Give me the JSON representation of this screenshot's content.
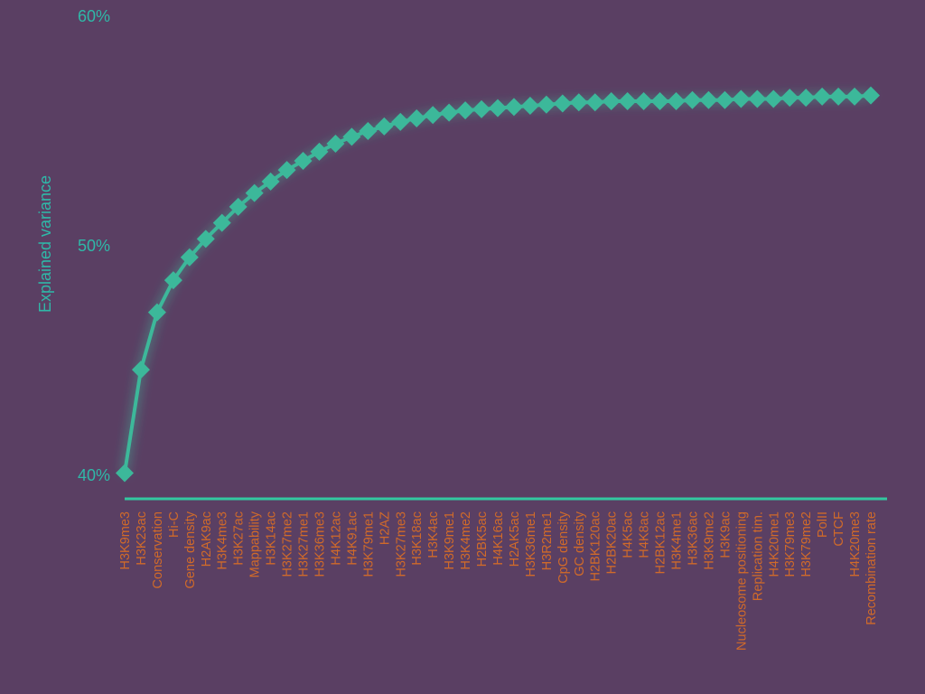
{
  "chart_data": {
    "type": "line",
    "title": "",
    "xlabel": "",
    "ylabel": "Explained variance",
    "ylim": [
      40,
      60
    ],
    "yticks": [
      "40%",
      "50%",
      "60%"
    ],
    "grid": false,
    "legend": "none",
    "categories": [
      "H3K9me3",
      "H3K23ac",
      "Conservation",
      "Hi-C",
      "Gene density",
      "H2AK9ac",
      "H3K4me3",
      "H3K27ac",
      "Mappability",
      "H3K14ac",
      "H3K27me2",
      "H3K27me1",
      "H3K36me3",
      "H4K12ac",
      "H4K91ac",
      "H3K79me1",
      "H2AZ",
      "H3K27me3",
      "H3K18ac",
      "H3K4ac",
      "H3K9me1",
      "H3K4me2",
      "H2BK5ac",
      "H4K16ac",
      "H2AK5ac",
      "H3K36me1",
      "H3R2me1",
      "CpG density",
      "GC density",
      "H2BK120ac",
      "H2BK20ac",
      "H4K5ac",
      "H4K8ac",
      "H2BK12ac",
      "H3K4me1",
      "H3K36ac",
      "H3K9me2",
      "H3K9ac",
      "Nucleosome positioning",
      "Replication tim.",
      "H4K20me1",
      "H3K79me3",
      "H3K79me2",
      "PolII",
      "CTCF",
      "H4K20me3",
      "Recombination rate"
    ],
    "series": [
      {
        "values": [
          40.1,
          44.6,
          47.1,
          48.5,
          49.5,
          50.3,
          51.0,
          51.7,
          52.3,
          52.8,
          53.3,
          53.7,
          54.1,
          54.45,
          54.75,
          55.0,
          55.2,
          55.4,
          55.55,
          55.7,
          55.8,
          55.9,
          55.95,
          56.0,
          56.05,
          56.1,
          56.15,
          56.2,
          56.25,
          56.25,
          56.3,
          56.3,
          56.3,
          56.3,
          56.3,
          56.35,
          56.35,
          56.35,
          56.4,
          56.4,
          56.4,
          56.45,
          56.45,
          56.5,
          56.5,
          56.5,
          56.55
        ],
        "color": "#3cb89a"
      }
    ],
    "colors": {
      "background": "#5a3f63",
      "line": "#3cb89a",
      "axis": "#33c8a0",
      "tick_text": "#2fb8a8",
      "category_text": "#d06a2a"
    }
  }
}
